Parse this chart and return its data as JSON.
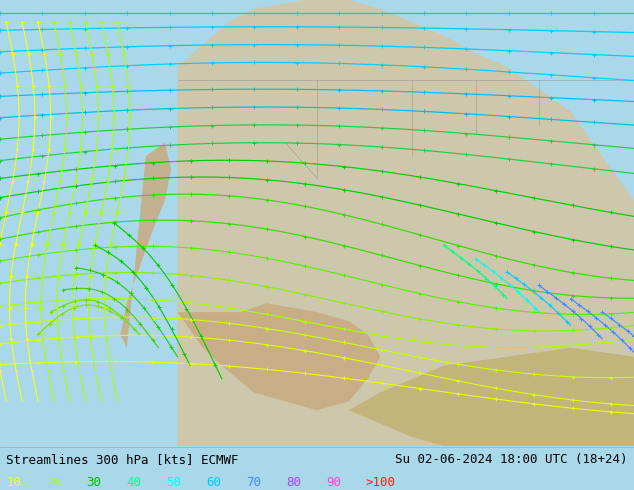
{
  "title_left": "Streamlines 300 hPa [kts] ECMWF",
  "title_right": "Su 02-06-2024 18:00 UTC (18+24)",
  "legend_values": [
    "10",
    "20",
    "30",
    "40",
    "50",
    "60",
    "70",
    "80",
    "90",
    ">100"
  ],
  "legend_colors": [
    "#ffff00",
    "#aaff00",
    "#00bb00",
    "#00ff88",
    "#00ffee",
    "#00ccff",
    "#4488ff",
    "#aa44ff",
    "#ff44cc",
    "#ff2200"
  ],
  "background_color": "#a8d8ea",
  "land_color_north": "#d4c4a0",
  "land_color_south": "#c8b87a",
  "fig_width": 6.34,
  "fig_height": 4.9,
  "dpi": 100,
  "bottom_bar_color": "#ffffff",
  "text_color": "#000000",
  "font_size_title": 9,
  "font_size_legend": 9,
  "streamline_colors": {
    "cyan": "#00ccff",
    "cyan_dark": "#00aadd",
    "green_bright": "#00dd00",
    "green_light": "#88ff00",
    "yellow": "#ffff00",
    "yellow_green": "#aaff00",
    "blue": "#4488ff",
    "purple": "#aa44ff",
    "magenta": "#ff44cc"
  }
}
